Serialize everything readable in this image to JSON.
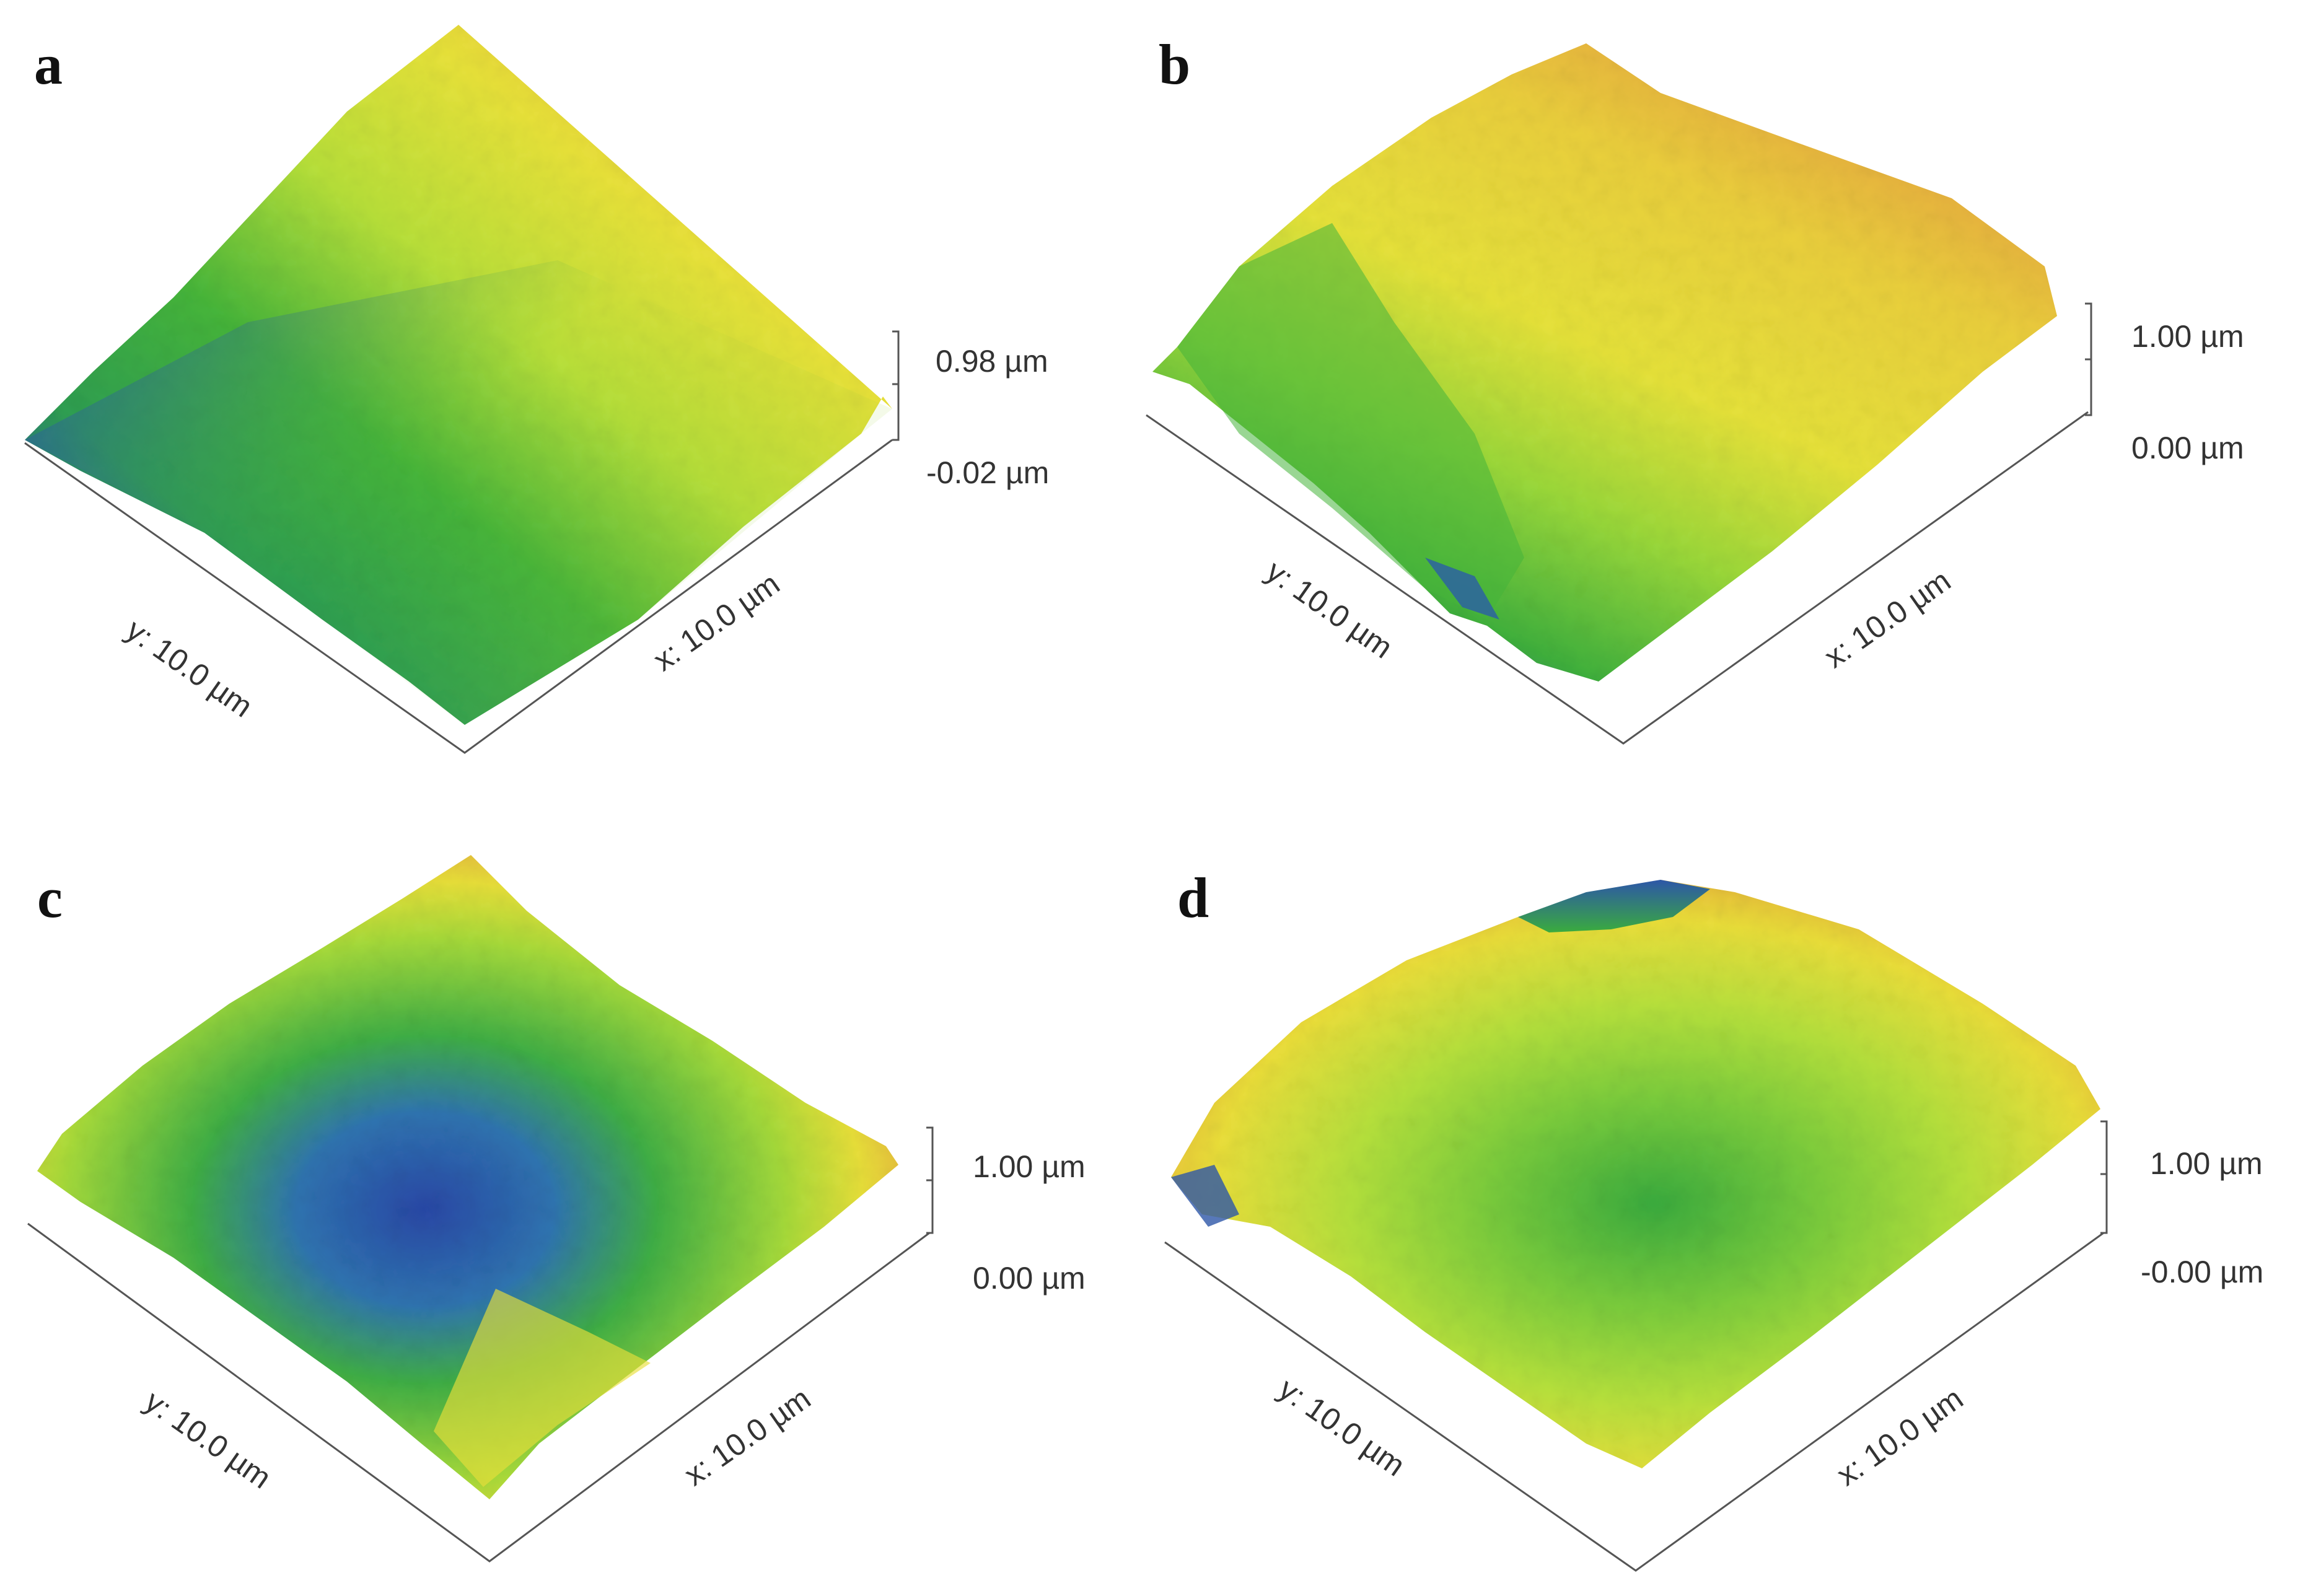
{
  "figure": {
    "panels": [
      {
        "id": "a",
        "label": "a",
        "x_axis_label": "x: 10.0 µm",
        "y_axis_label": "y: 10.0 µm",
        "z_max_label": "0.98 µm",
        "z_min_label": "-0.02 µm",
        "dominant_colors": [
          "#e0a33a",
          "#e8e23a",
          "#b8e03a",
          "#46b53a",
          "#2e9e52",
          "#2a57a8"
        ]
      },
      {
        "id": "b",
        "label": "b",
        "x_axis_label": "x: 10.0 µm",
        "y_axis_label": "y: 10.0 µm",
        "z_max_label": "1.00 µm",
        "z_min_label": "0.00 µm",
        "dominant_colors": [
          "#e6a640",
          "#eacf3c",
          "#e6e23a",
          "#9ad83a",
          "#3fb03c",
          "#2a5ea8"
        ]
      },
      {
        "id": "c",
        "label": "c",
        "x_axis_label": "x: 10.0 µm",
        "y_axis_label": "y: 10.0 µm",
        "z_max_label": "1.00 µm",
        "z_min_label": "0.00 µm",
        "dominant_colors": [
          "#e2a43c",
          "#e8df3a",
          "#a6da3a",
          "#3fae45",
          "#2f74b0",
          "#2948a6"
        ]
      },
      {
        "id": "d",
        "label": "d",
        "x_axis_label": "x: 10.0 µm",
        "y_axis_label": "y: 10.0 µm",
        "z_max_label": "1.00 µm",
        "z_min_label": "-0.00 µm",
        "dominant_colors": [
          "#e3a23a",
          "#eade3a",
          "#b4e03c",
          "#7bcc3c",
          "#3aab3e",
          "#2d56a8"
        ]
      }
    ]
  }
}
